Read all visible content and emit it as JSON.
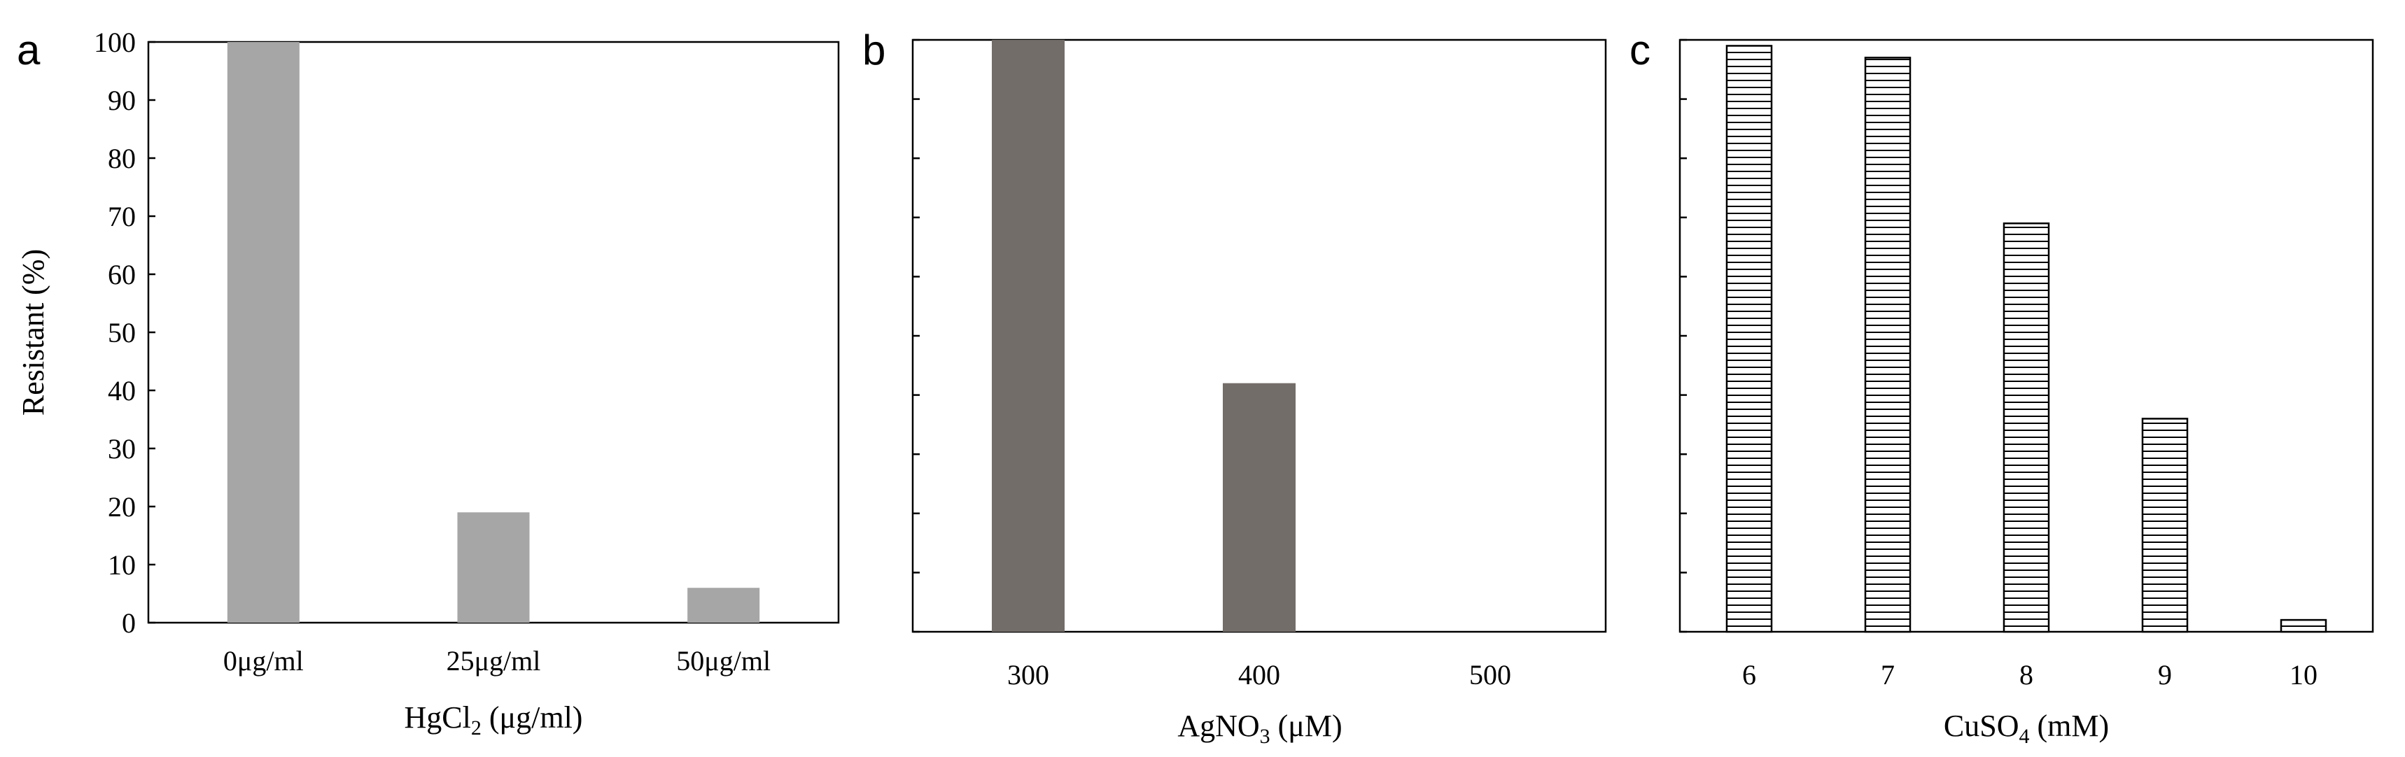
{
  "chart_data": [
    {
      "type": "bar",
      "panel_label": "a",
      "categories": [
        "0μg/ml",
        "25μg/ml",
        "50μg/ml"
      ],
      "values": [
        100,
        19,
        6
      ],
      "xlabel_main": "HgCl",
      "xlabel_sub": "2",
      "xlabel_tail": "  (μg/ml)",
      "ylabel": "Resistant (%)",
      "ylim": [
        0,
        100
      ],
      "yticks": [
        "0",
        "10",
        "20",
        "30",
        "40",
        "50",
        "60",
        "70",
        "80",
        "90",
        "100"
      ],
      "bar_color": "#a6a6a6",
      "grid": false
    },
    {
      "type": "bar",
      "panel_label": "b",
      "categories": [
        "300",
        "400",
        "500"
      ],
      "values": [
        100,
        42,
        0
      ],
      "xlabel_main": "AgNO",
      "xlabel_sub": "3",
      "xlabel_tail": " (μM)",
      "ylim": [
        0,
        100
      ],
      "bar_color": "#736d6a",
      "grid": false
    },
    {
      "type": "bar",
      "panel_label": "c",
      "categories": [
        "6",
        "7",
        "8",
        "9",
        "10"
      ],
      "values": [
        99,
        97,
        69,
        36,
        2
      ],
      "xlabel_main": "CuSO",
      "xlabel_sub": "4",
      "xlabel_tail": " (mM)",
      "ylim": [
        0,
        100
      ],
      "bar_pattern": "horizontal-stripes",
      "grid": false
    }
  ]
}
